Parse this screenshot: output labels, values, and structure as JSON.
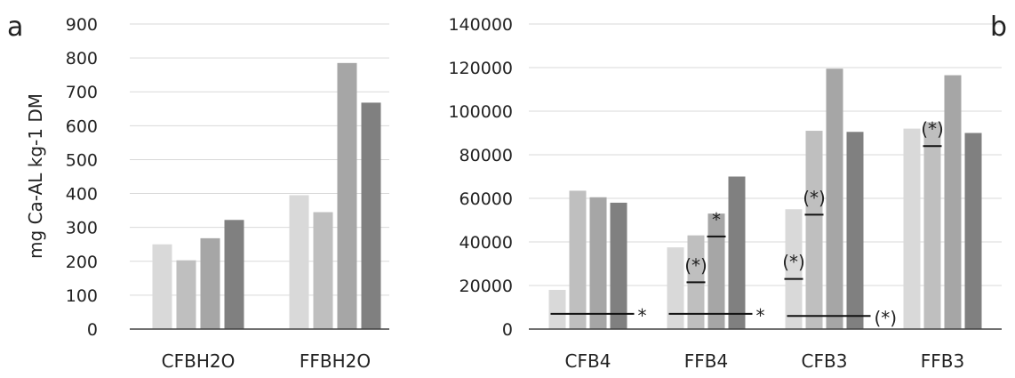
{
  "chart_data": [
    {
      "type": "bar",
      "panel_label": "a",
      "ylabel": "mg Ca-AL kg-1 DM",
      "ylim": [
        0,
        900
      ],
      "yticks": [
        0,
        100,
        200,
        300,
        400,
        500,
        600,
        700,
        800,
        900
      ],
      "grid": true,
      "categories": [
        "CFBH2O",
        "FFBH2O"
      ],
      "series": [
        {
          "values": [
            250,
            395
          ],
          "color": "#d9d9d9"
        },
        {
          "values": [
            203,
            345
          ],
          "color": "#bfbfbf"
        },
        {
          "values": [
            268,
            785
          ],
          "color": "#a6a6a6"
        },
        {
          "values": [
            322,
            668
          ],
          "color": "#808080"
        }
      ]
    },
    {
      "type": "bar",
      "panel_label": "b",
      "ylabel": "",
      "ylim": [
        0,
        140000
      ],
      "yticks": [
        0,
        20000,
        40000,
        60000,
        80000,
        100000,
        120000,
        140000
      ],
      "grid": true,
      "categories": [
        "CFB4",
        "FFB4",
        "CFB3",
        "FFB3"
      ],
      "series": [
        {
          "values": [
            18000,
            37500,
            55000,
            92000
          ],
          "color": "#d9d9d9"
        },
        {
          "values": [
            63500,
            43000,
            91000,
            95000
          ],
          "color": "#bfbfbf"
        },
        {
          "values": [
            60500,
            53000,
            119500,
            116500
          ],
          "color": "#a6a6a6"
        },
        {
          "values": [
            58000,
            70000,
            90500,
            90000
          ],
          "color": "#808080"
        }
      ],
      "annotations": [
        {
          "type": "hline",
          "category": 0,
          "from_series": 0,
          "to_series": 3,
          "y": 7000,
          "label": "*"
        },
        {
          "type": "hline",
          "category": 1,
          "from_series": 0,
          "to_series": 3,
          "y": 7000,
          "label": "*"
        },
        {
          "type": "hline",
          "category": 2,
          "from_series": 0,
          "to_series": 3,
          "y": 6000,
          "label": "(*)"
        },
        {
          "type": "segment",
          "category": 1,
          "series": 1,
          "y": 21500,
          "label": "(*)"
        },
        {
          "type": "segment",
          "category": 1,
          "series": 2,
          "y": 42500,
          "label": "*"
        },
        {
          "type": "segment",
          "category": 2,
          "series": 0,
          "y": 23000,
          "label": "(*)"
        },
        {
          "type": "segment",
          "category": 2,
          "series": 1,
          "y": 52500,
          "label": "(*)"
        },
        {
          "type": "segment",
          "category": 3,
          "series": 1,
          "y": 84000,
          "label": "(*)"
        }
      ]
    }
  ]
}
